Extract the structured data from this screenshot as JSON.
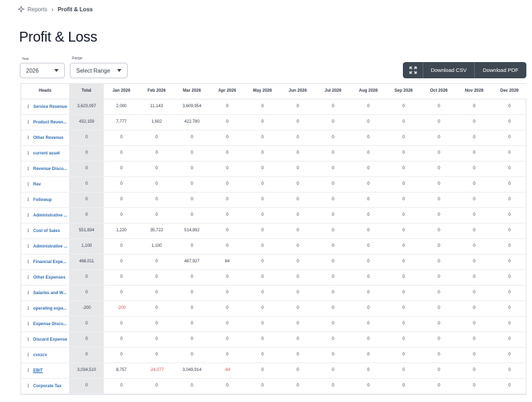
{
  "breadcrumb": {
    "parent": "Reports",
    "separator": "›",
    "current": "Profit & Loss"
  },
  "page": {
    "title": "Profit & Loss"
  },
  "filters": {
    "year_label": "Year",
    "year_value": "2026",
    "range_label": "Range",
    "range_value": "Select Range"
  },
  "toolbar": {
    "csv_label": "Download CSV",
    "pdf_label": "Download PDF"
  },
  "table": {
    "columns": [
      "Heads",
      "Total",
      "Jan 2026",
      "Feb 2026",
      "Mar 2026",
      "Apr 2026",
      "May 2026",
      "Jun 2026",
      "Jul 2026",
      "Aug 2026",
      "Sep 2026",
      "Oct 2026",
      "Nov 2026",
      "Dec 2026"
    ],
    "rows": [
      {
        "head": "Service Revenue",
        "cells": [
          "3,623,097",
          "2,000",
          "11,143",
          "3,609,954",
          "0",
          "0",
          "0",
          "0",
          "0",
          "0",
          "0",
          "0",
          "0"
        ]
      },
      {
        "head": "Product Reven...",
        "cells": [
          "432,159",
          "7,777",
          "1,602",
          "422,780",
          "0",
          "0",
          "0",
          "0",
          "0",
          "0",
          "0",
          "0",
          "0"
        ]
      },
      {
        "head": "Other Revenue",
        "cells": [
          "0",
          "0",
          "0",
          "0",
          "0",
          "0",
          "0",
          "0",
          "0",
          "0",
          "0",
          "0",
          "0"
        ]
      },
      {
        "head": "current asset",
        "cells": [
          "0",
          "0",
          "0",
          "0",
          "0",
          "0",
          "0",
          "0",
          "0",
          "0",
          "0",
          "0",
          "0"
        ]
      },
      {
        "head": "Revenue Disco...",
        "cells": [
          "0",
          "0",
          "0",
          "0",
          "0",
          "0",
          "0",
          "0",
          "0",
          "0",
          "0",
          "0",
          "0"
        ]
      },
      {
        "head": "Rev",
        "cells": [
          "0",
          "0",
          "0",
          "0",
          "0",
          "0",
          "0",
          "0",
          "0",
          "0",
          "0",
          "0",
          "0"
        ]
      },
      {
        "head": "Followup",
        "cells": [
          "0",
          "0",
          "0",
          "0",
          "0",
          "0",
          "0",
          "0",
          "0",
          "0",
          "0",
          "0",
          "0"
        ]
      },
      {
        "head": "Administrative ...",
        "cells": [
          "0",
          "0",
          "0",
          "0",
          "0",
          "0",
          "0",
          "0",
          "0",
          "0",
          "0",
          "0",
          "0"
        ]
      },
      {
        "head": "Cost of Sales",
        "cells": [
          "551,834",
          "1,220",
          "35,722",
          "514,892",
          "0",
          "0",
          "0",
          "0",
          "0",
          "0",
          "0",
          "0",
          "0"
        ]
      },
      {
        "head": "Administrative ...",
        "cells": [
          "1,100",
          "0",
          "1,100",
          "0",
          "0",
          "0",
          "0",
          "0",
          "0",
          "0",
          "0",
          "0",
          "0"
        ]
      },
      {
        "head": "Financial Expe...",
        "cells": [
          "468,011",
          "0",
          "0",
          "467,927",
          "84",
          "0",
          "0",
          "0",
          "0",
          "0",
          "0",
          "0",
          "0"
        ]
      },
      {
        "head": "Other Expenses",
        "cells": [
          "0",
          "0",
          "0",
          "0",
          "0",
          "0",
          "0",
          "0",
          "0",
          "0",
          "0",
          "0",
          "0"
        ]
      },
      {
        "head": "Salaries and W...",
        "cells": [
          "0",
          "0",
          "0",
          "0",
          "0",
          "0",
          "0",
          "0",
          "0",
          "0",
          "0",
          "0",
          "0"
        ]
      },
      {
        "head": "operating expe...",
        "cells": [
          "-200",
          "-200",
          "0",
          "0",
          "0",
          "0",
          "0",
          "0",
          "0",
          "0",
          "0",
          "0",
          "0"
        ]
      },
      {
        "head": "Expense Disco...",
        "cells": [
          "0",
          "0",
          "0",
          "0",
          "0",
          "0",
          "0",
          "0",
          "0",
          "0",
          "0",
          "0",
          "0"
        ]
      },
      {
        "head": "Discard Expense",
        "cells": [
          "0",
          "0",
          "0",
          "0",
          "0",
          "0",
          "0",
          "0",
          "0",
          "0",
          "0",
          "0",
          "0"
        ]
      },
      {
        "head": "cvxzcv",
        "cells": [
          "0",
          "0",
          "0",
          "0",
          "0",
          "0",
          "0",
          "0",
          "0",
          "0",
          "0",
          "0",
          "0"
        ]
      },
      {
        "head": "EBIT",
        "cells": [
          "3,034,510",
          "8,757",
          "-24,077",
          "3,049,914",
          "-84",
          "0",
          "0",
          "0",
          "0",
          "0",
          "0",
          "0",
          "0"
        ]
      },
      {
        "head": "Corporate Tax",
        "cells": [
          "0",
          "0",
          "0",
          "0",
          "0",
          "0",
          "0",
          "0",
          "0",
          "0",
          "0",
          "0",
          "0"
        ]
      }
    ]
  },
  "colors": {
    "link": "#2f6fb3",
    "negative": "#d9534f",
    "toolbar": "#3e4852",
    "total_column": "#e7e8ea"
  },
  "icons": {
    "breadcrumb": "reports-sparkle-icon",
    "expand": "expand-icon"
  }
}
